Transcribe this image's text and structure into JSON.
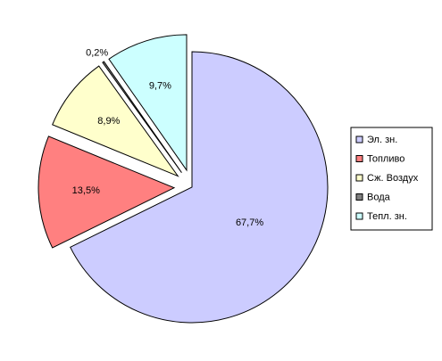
{
  "chart_data": {
    "type": "pie",
    "categories": [
      "Эл. зн.",
      "Топливо",
      "Сж. Воздух",
      "Вода",
      "Тепл. зн."
    ],
    "values": [
      67.7,
      13.5,
      8.9,
      0.2,
      9.7
    ],
    "value_labels": [
      "67,7%",
      "13,5%",
      "8,9%",
      "0,2%",
      "9,7%"
    ],
    "colors": [
      "#ccccff",
      "#ff8080",
      "#ffffcc",
      "#808080",
      "#ccffff"
    ],
    "legend": "right"
  }
}
